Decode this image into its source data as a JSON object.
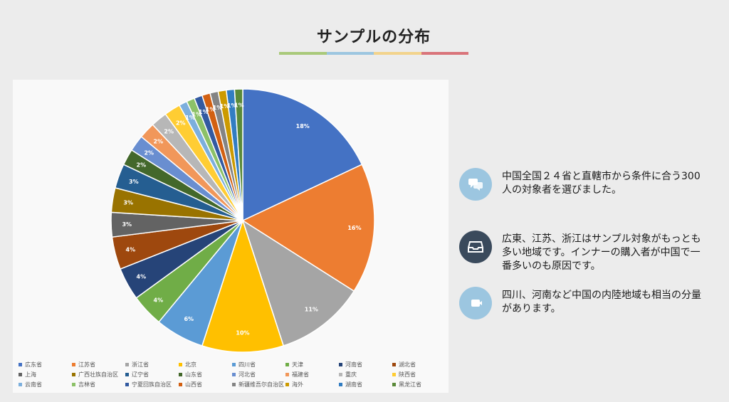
{
  "title": "サンプルの分布",
  "title_rule_colors": [
    "#a9c97a",
    "#9cc6e0",
    "#f2d38c",
    "#d9747a"
  ],
  "chart_data": {
    "type": "pie",
    "categories": [
      "広东省",
      "江苏省",
      "浙江省",
      "北京",
      "四川省",
      "天津",
      "河南省",
      "湖北省",
      "上海",
      "广西壮族自治区",
      "辽宁省",
      "山东省",
      "河北省",
      "福建省",
      "重庆",
      "陕西省",
      "云南省",
      "吉林省",
      "宁夏回族自治区",
      "山西省",
      "新疆维吾尔自治区",
      "海外",
      "湖南省",
      "黑龙江省"
    ],
    "values": [
      18,
      16,
      11,
      10,
      6,
      4,
      4,
      4,
      3,
      3,
      3,
      2,
      2,
      2,
      2,
      2,
      1,
      1,
      1,
      1,
      1,
      1,
      1,
      1
    ],
    "labels": [
      "18%",
      "16%",
      "11%",
      "10%",
      "6%",
      "4%",
      "4%",
      "4%",
      "3%",
      "3%",
      "3%",
      "2%",
      "2%",
      "2%",
      "2%",
      "2%",
      "1%",
      "1%",
      "1%",
      "1%",
      "1%",
      "1%",
      "1%",
      "1%"
    ],
    "colors": [
      "#4472c4",
      "#ed7d31",
      "#a5a5a5",
      "#ffc000",
      "#5b9bd5",
      "#70ad47",
      "#264478",
      "#9e480e",
      "#636363",
      "#997300",
      "#255e91",
      "#43682b",
      "#698ed0",
      "#f1975a",
      "#b7b7b7",
      "#ffcd33",
      "#7cafdd",
      "#8cc168",
      "#335aa1",
      "#d26012",
      "#848484",
      "#cc9a00",
      "#327dc2",
      "#5a8a39"
    ],
    "legend": "bottom"
  },
  "points": [
    {
      "icon": "chat-bubbles-icon",
      "icon_color": "#9cc6e0",
      "text": "中国全国２４省と直轄市から条件に合う300人の対象者を選びました。"
    },
    {
      "icon": "inbox-tray-icon",
      "icon_color": "#3a4a5c",
      "text": "広東、江苏、浙江はサンプル対象がもっとも多い地域です。インナーの購入者が中国で一番多いのも原因です。"
    },
    {
      "icon": "video-camera-icon",
      "icon_color": "#9cc6e0",
      "text": "四川、河南など中国の内陸地域も相当の分量があります。"
    }
  ]
}
